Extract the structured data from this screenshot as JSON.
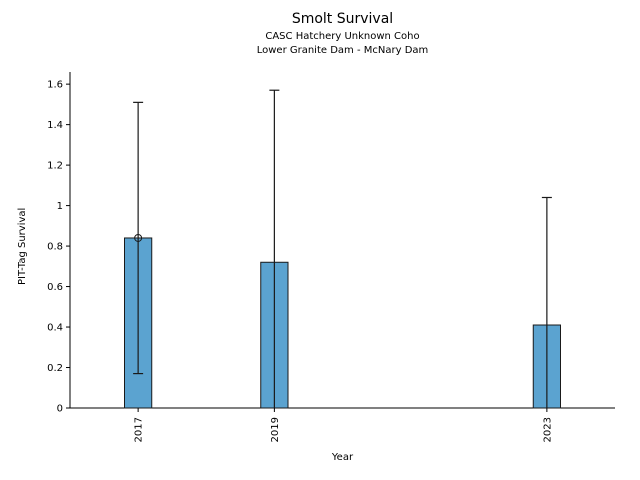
{
  "chart_data": {
    "type": "bar",
    "title": "Smolt Survival",
    "subtitle1": "CASC Hatchery Unknown Coho",
    "subtitle2": "Lower Granite Dam - McNary Dam",
    "xlabel": "Year",
    "ylabel": "PIT-Tag Survival",
    "categories": [
      "2017",
      "2019",
      "2023"
    ],
    "x_values": [
      2017,
      2019,
      2023
    ],
    "values": [
      0.84,
      0.72,
      0.41
    ],
    "error_low": [
      0.17,
      0,
      0
    ],
    "error_high": [
      1.51,
      1.57,
      1.04
    ],
    "marker_points": [
      {
        "x": 2017,
        "y": 0.84
      }
    ],
    "xlim": [
      2016,
      2024
    ],
    "ylim": [
      0,
      1.66
    ],
    "yticks": [
      0,
      0.2,
      0.4,
      0.6,
      0.8,
      1,
      1.2,
      1.4,
      1.6
    ],
    "ytick_labels": [
      "0",
      "0.2",
      "0.4",
      "0.6",
      "0.8",
      "1",
      "1.2",
      "1.4",
      "1.6"
    ],
    "legend": "none",
    "grid": "off",
    "bar_color": "#5BA3D0",
    "bar_edge_color": "#1a1a1a",
    "error_color": "#1a1a1a",
    "bar_width_years": 0.4
  }
}
